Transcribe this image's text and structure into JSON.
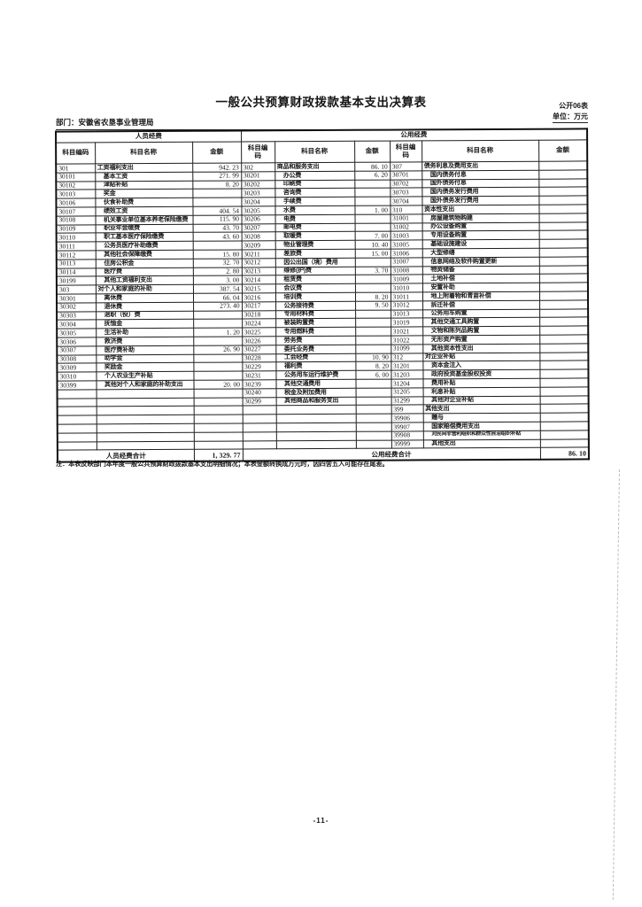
{
  "doc": {
    "title": "一般公共预算财政拨款基本支出决算表",
    "form_code": "公开06表",
    "unit_label": "单位：万元",
    "department_label": "部门：安徽省农垦事业管理局",
    "note": "注：本表反映部门本年度一般公共预算财政拨款基本支出明细情况；本表金额转换成万元时，因四舍五入可能存在尾差。",
    "page_number": "-11-"
  },
  "table": {
    "group_headers": [
      "人员经费",
      "公用经费"
    ],
    "column_headers": [
      "科目编码",
      "科目名称",
      "金额",
      "科目编\n码",
      "科目名称",
      "金额",
      "科目编\n码",
      "科目名称",
      "金额"
    ],
    "rows": [
      [
        "301",
        "工资福利支出",
        "942. 23",
        "302",
        "商品和服务支出",
        "86. 10",
        "307",
        "债务利息及费用支出",
        ""
      ],
      [
        "30101",
        "基本工资",
        "271. 99",
        "30201",
        "办公费",
        "6. 20",
        "30701",
        "国内债务付息",
        ""
      ],
      [
        "30102",
        "津贴补贴",
        "8. 20",
        "30202",
        "印刷费",
        "",
        "30702",
        "国外债务付息",
        ""
      ],
      [
        "30103",
        "奖金",
        "",
        "30203",
        "咨询费",
        "",
        "30703",
        "国内债务发行费用",
        ""
      ],
      [
        "30106",
        "伙食补助费",
        "",
        "30204",
        "手续费",
        "",
        "30704",
        "国外债务发行费用",
        ""
      ],
      [
        "30107",
        "绩效工资",
        "404. 54",
        "30205",
        "水费",
        "1. 00",
        "310",
        "资本性支出",
        ""
      ],
      [
        "30108",
        "机关事业单位基本养老保险缴费",
        "115. 90",
        "30206",
        "电费",
        "",
        "31001",
        "房屋建筑物购建",
        ""
      ],
      [
        "30109",
        "职业年金缴费",
        "43. 70",
        "30207",
        "邮电费",
        "",
        "31002",
        "办公设备购置",
        ""
      ],
      [
        "30110",
        "职工基本医疗保险缴费",
        "43. 60",
        "30208",
        "取暖费",
        "7. 00",
        "31003",
        "专用设备购置",
        ""
      ],
      [
        "30111",
        "公务员医疗补助缴费",
        "",
        "30209",
        "物业管理费",
        "10. 40",
        "31005",
        "基础设施建设",
        ""
      ],
      [
        "30112",
        "其他社会保障缴费",
        "15. 80",
        "30211",
        "差旅费",
        "15. 00",
        "31006",
        "大型修缮",
        ""
      ],
      [
        "30113",
        "住房公积金",
        "32. 70",
        "30212",
        "因公出国（境）费用",
        "",
        "31007",
        "信息网络及软件购置更新",
        ""
      ],
      [
        "30114",
        "医疗费",
        "2. 80",
        "30213",
        "维修(护)费",
        "3. 70",
        "31008",
        "物资储备",
        ""
      ],
      [
        "30199",
        "其他工资福利支出",
        "3. 00",
        "30214",
        "租赁费",
        "",
        "31009",
        "土地补偿",
        ""
      ],
      [
        "303",
        "对个人和家庭的补助",
        "387. 54",
        "30215",
        "会议费",
        "",
        "31010",
        "安置补助",
        ""
      ],
      [
        "30301",
        "离休费",
        "66. 04",
        "30216",
        "培训费",
        "8. 20",
        "31011",
        "地上附着物和青苗补偿",
        ""
      ],
      [
        "30302",
        "退休费",
        "273. 40",
        "30217",
        "公务接待费",
        "9. 50",
        "31012",
        "拆迁补偿",
        ""
      ],
      [
        "30303",
        "退职（役）费",
        "",
        "30218",
        "专用材料费",
        "",
        "31013",
        "公务用车购置",
        ""
      ],
      [
        "30304",
        "抚恤金",
        "",
        "30224",
        "被装购置费",
        "",
        "31019",
        "其他交通工具购置",
        ""
      ],
      [
        "30305",
        "生活补助",
        "1. 20",
        "30225",
        "专用燃料费",
        "",
        "31021",
        "文物和陈列品购置",
        ""
      ],
      [
        "30306",
        "救济费",
        "",
        "30226",
        "劳务费",
        "",
        "31022",
        "无形资产购置",
        ""
      ],
      [
        "30307",
        "医疗费补助",
        "26. 90",
        "30227",
        "委托业务费",
        "",
        "31099",
        "其他资本性支出",
        ""
      ],
      [
        "30308",
        "助学金",
        "",
        "30228",
        "工会经费",
        "10. 90",
        "312",
        "对企业补贴",
        ""
      ],
      [
        "30309",
        "奖励金",
        "",
        "30229",
        "福利费",
        "8. 20",
        "31201",
        "资本金注入",
        ""
      ],
      [
        "30310",
        "个人农业生产补贴",
        "",
        "30231",
        "公务用车运行维护费",
        "6. 00",
        "31203",
        "政府投资基金股权投资",
        ""
      ],
      [
        "30399",
        "其他对个人和家庭的补助支出",
        "20. 00",
        "30239",
        "其他交通费用",
        "",
        "31204",
        "费用补贴",
        ""
      ],
      [
        "",
        "",
        "",
        "30240",
        "税金及附加费用",
        "",
        "31205",
        "利息补贴",
        ""
      ],
      [
        "",
        "",
        "",
        "30299",
        "其他商品和服务支出",
        "",
        "31299",
        "其他对企业补贴",
        ""
      ],
      [
        "",
        "",
        "",
        "",
        "",
        "",
        "399",
        "其他支出",
        ""
      ],
      [
        "",
        "",
        "",
        "",
        "",
        "",
        "39906",
        "赠与",
        ""
      ],
      [
        "",
        "",
        "",
        "",
        "",
        "",
        "39907",
        "国家赔偿费用支出",
        ""
      ],
      [
        "",
        "",
        "",
        "",
        "",
        "",
        "39908",
        "对民间非营利组织和群众性自治组织补贴",
        ""
      ],
      [
        "",
        "",
        "",
        "",
        "",
        "",
        "39999",
        "其他支出",
        ""
      ]
    ],
    "totals": {
      "personnel_label": "人员经费合计",
      "personnel_amount": "1, 329. 77",
      "public_label": "公用经费合计",
      "public_amount": "86. 10"
    }
  }
}
